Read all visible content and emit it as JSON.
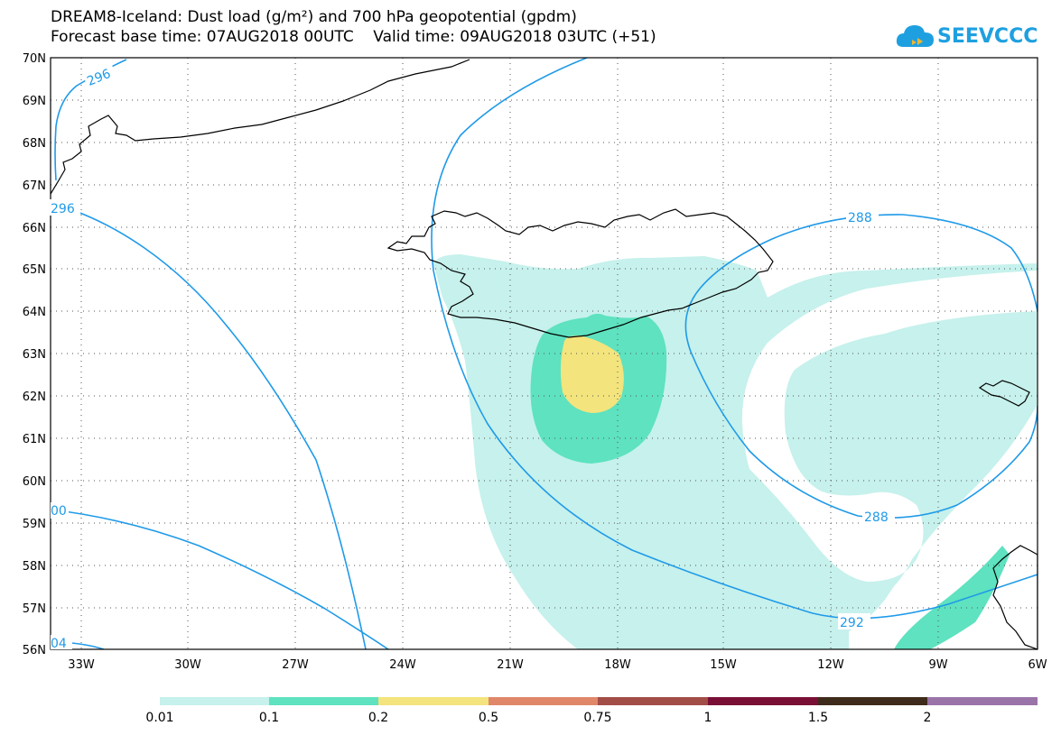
{
  "title": {
    "line1": "DREAM8-Iceland: Dust load (g/m²) and 700 hPa geopotential (gpdm)",
    "line2": "Forecast base time: 07AUG2018 00UTC    Valid time: 09AUG2018 03UTC (+51)"
  },
  "logo": {
    "text": "SEEVCCC",
    "icon": "cloud-icon"
  },
  "axes": {
    "lat_labels": [
      "70N",
      "69N",
      "68N",
      "67N",
      "66N",
      "65N",
      "64N",
      "63N",
      "62N",
      "61N",
      "60N",
      "59N",
      "58N",
      "57N",
      "56N"
    ],
    "lon_labels": [
      "33W",
      "30W",
      "27W",
      "24W",
      "21W",
      "18W",
      "15W",
      "12W",
      "9W",
      "6W"
    ],
    "lat_range": [
      56,
      70
    ],
    "lon_range": [
      -34.5,
      -6
    ],
    "grid": "dotted"
  },
  "contours": {
    "variable": "700 hPa geopotential (gpdm)",
    "color": "#1f9ae8",
    "labels": [
      "296",
      "296",
      "00",
      "04",
      "288",
      "288",
      "292"
    ]
  },
  "legend": {
    "thresholds": [
      "0.01",
      "0.1",
      "0.2",
      "0.5",
      "0.75",
      "1",
      "1.5",
      "2"
    ],
    "colors": [
      "#c6f1ec",
      "#5ee2bf",
      "#f3e47d",
      "#e0876a",
      "#a34d47",
      "#7a0f36",
      "#3f2b1b",
      "#9a74a8"
    ]
  },
  "colors": {
    "dust_low": "#c6f1ec",
    "dust_mid": "#5ee2bf",
    "dust_high": "#f3e47d",
    "contour": "#1f9ae8",
    "coast": "#000000"
  }
}
